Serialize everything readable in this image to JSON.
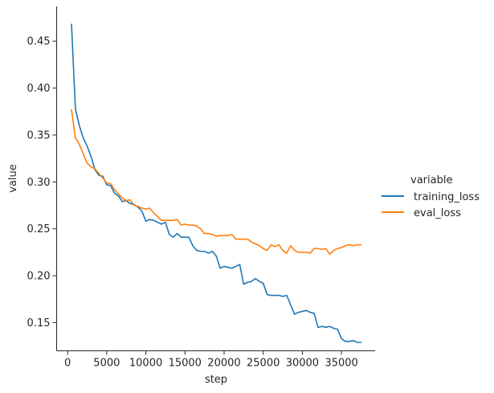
{
  "chart_data": {
    "type": "line",
    "xlabel": "step",
    "ylabel": "value",
    "xlim": [
      -1400,
      39300
    ],
    "ylim": [
      0.12,
      0.487
    ],
    "xticks": [
      0,
      5000,
      10000,
      15000,
      20000,
      25000,
      30000,
      35000
    ],
    "yticks": [
      0.15,
      0.2,
      0.25,
      0.3,
      0.35,
      0.4,
      0.45
    ],
    "grid": false,
    "legend": {
      "title": "variable",
      "placement": "right",
      "entries": [
        "training_loss",
        "eval_loss"
      ]
    },
    "series": [
      {
        "name": "training_loss",
        "color": "#1f77b4",
        "x": [
          500,
          1000,
          1500,
          2000,
          2500,
          3000,
          3500,
          4000,
          4500,
          5000,
          5500,
          6000,
          6500,
          7000,
          7500,
          8000,
          8500,
          9000,
          9500,
          10000,
          10500,
          11000,
          11500,
          12000,
          12500,
          13000,
          13500,
          14000,
          14500,
          15000,
          15500,
          16000,
          16500,
          17000,
          17500,
          18000,
          18500,
          19000,
          19500,
          20000,
          20500,
          21000,
          21500,
          22000,
          22500,
          23000,
          23500,
          24000,
          24500,
          25000,
          25500,
          26000,
          26500,
          27000,
          27500,
          28000,
          28500,
          29000,
          29500,
          30000,
          30500,
          31000,
          31500,
          32000,
          32500,
          33000,
          33500,
          34000,
          34500,
          35000,
          35500,
          36000,
          36500,
          37000,
          37500
        ],
        "y": [
          0.468,
          0.378,
          0.36,
          0.347,
          0.338,
          0.327,
          0.313,
          0.307,
          0.306,
          0.297,
          0.296,
          0.288,
          0.285,
          0.279,
          0.28,
          0.277,
          0.276,
          0.273,
          0.269,
          0.258,
          0.26,
          0.259,
          0.257,
          0.255,
          0.257,
          0.244,
          0.241,
          0.245,
          0.241,
          0.241,
          0.241,
          0.232,
          0.227,
          0.226,
          0.226,
          0.224,
          0.226,
          0.221,
          0.208,
          0.21,
          0.209,
          0.208,
          0.21,
          0.212,
          0.191,
          0.193,
          0.194,
          0.197,
          0.194,
          0.192,
          0.18,
          0.179,
          0.179,
          0.179,
          0.178,
          0.179,
          0.169,
          0.159,
          0.161,
          0.162,
          0.163,
          0.161,
          0.16,
          0.145,
          0.146,
          0.145,
          0.146,
          0.144,
          0.143,
          0.133,
          0.13,
          0.13,
          0.131,
          0.129,
          0.129
        ]
      },
      {
        "name": "eval_loss",
        "color": "#ff7f0e",
        "x": [
          500,
          1000,
          1500,
          2000,
          2500,
          3000,
          3500,
          4000,
          4500,
          5000,
          5500,
          6000,
          6500,
          7000,
          7500,
          8000,
          8500,
          9000,
          9500,
          10000,
          10500,
          11000,
          11500,
          12000,
          12500,
          13000,
          13500,
          14000,
          14500,
          15000,
          15500,
          16000,
          16500,
          17000,
          17500,
          18000,
          18500,
          19000,
          19500,
          20000,
          20500,
          21000,
          21500,
          22000,
          22500,
          23000,
          23500,
          24000,
          24500,
          25000,
          25500,
          26000,
          26500,
          27000,
          27500,
          28000,
          28500,
          29000,
          29500,
          30000,
          30500,
          31000,
          31500,
          32000,
          32500,
          33000,
          33500,
          34000,
          34500,
          35000,
          35500,
          36000,
          36500,
          37000,
          37500
        ],
        "y": [
          0.377,
          0.347,
          0.34,
          0.33,
          0.32,
          0.316,
          0.314,
          0.309,
          0.304,
          0.299,
          0.298,
          0.292,
          0.287,
          0.283,
          0.28,
          0.281,
          0.275,
          0.274,
          0.272,
          0.271,
          0.272,
          0.267,
          0.263,
          0.259,
          0.259,
          0.259,
          0.259,
          0.26,
          0.254,
          0.255,
          0.254,
          0.254,
          0.253,
          0.25,
          0.245,
          0.245,
          0.244,
          0.242,
          0.243,
          0.243,
          0.243,
          0.244,
          0.239,
          0.239,
          0.239,
          0.239,
          0.236,
          0.234,
          0.232,
          0.229,
          0.227,
          0.233,
          0.231,
          0.233,
          0.227,
          0.224,
          0.232,
          0.227,
          0.225,
          0.225,
          0.225,
          0.224,
          0.229,
          0.229,
          0.228,
          0.229,
          0.223,
          0.227,
          0.229,
          0.23,
          0.232,
          0.233,
          0.232,
          0.233,
          0.233
        ]
      }
    ]
  }
}
